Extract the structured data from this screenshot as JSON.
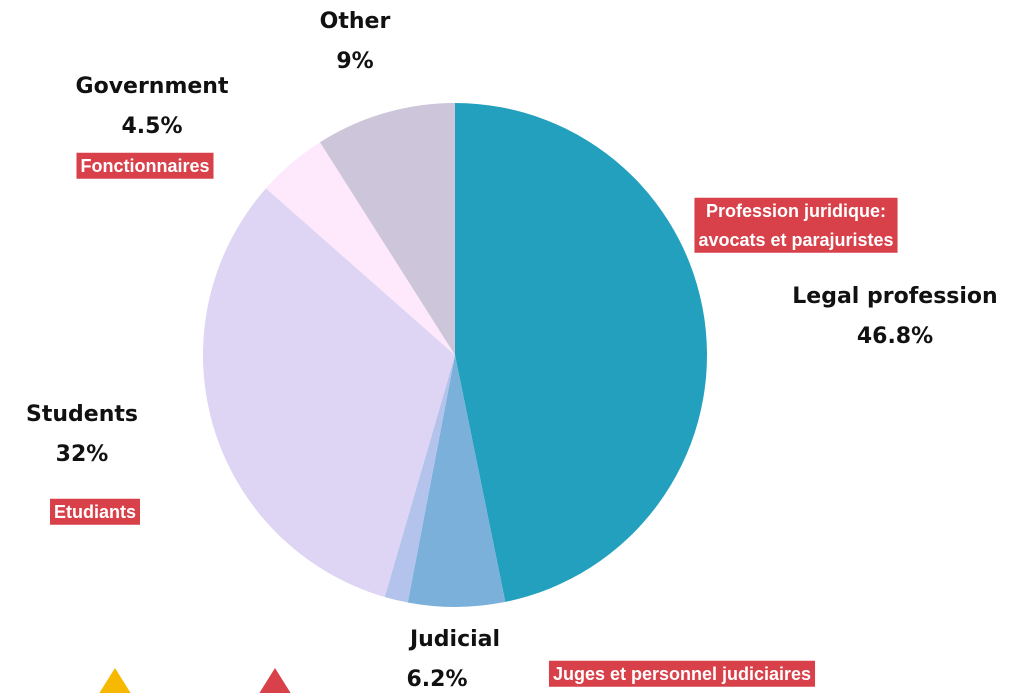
{
  "chart_data": {
    "type": "pie",
    "categories": [
      "Legal profession",
      "Judicial",
      null,
      "Students",
      "Government",
      "Other"
    ],
    "values": [
      46.8,
      6.2,
      1.5,
      32,
      4.5,
      9
    ],
    "value_labels": [
      "46.8%",
      "6.2%",
      null,
      "32%",
      "4.5%",
      "9%"
    ],
    "translations": [
      [
        "Profession juridique:",
        "avocats et parajuristes"
      ],
      [
        "Juges et personnel judiciaires"
      ],
      null,
      [
        "Etudiants"
      ],
      [
        "Fonctionnaires"
      ],
      null
    ],
    "colors": [
      "#22a0bd",
      "#7ab0da",
      "#b4c3ec",
      "#ded5f4",
      "#fde9fb",
      "#cdc5da"
    ]
  }
}
